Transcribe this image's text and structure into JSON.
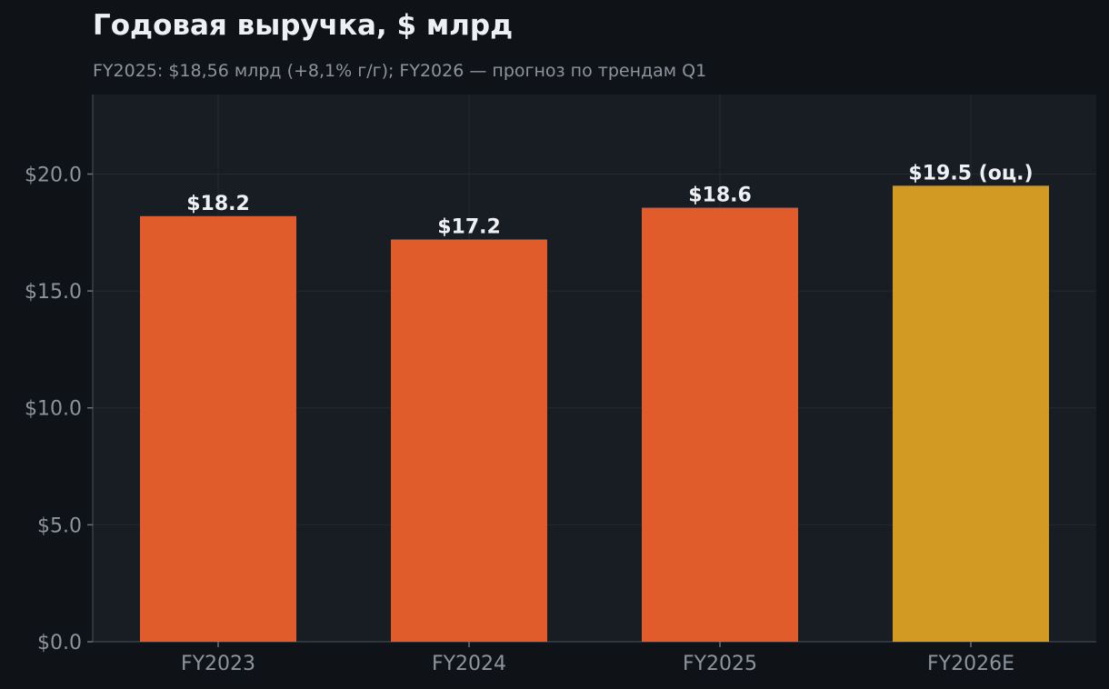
{
  "chart_data": {
    "type": "bar",
    "title": "Годовая выручка, $ млрд",
    "subtitle": "FY2025: $18,56 млрд (+8,1% г/г); FY2026 — прогноз по трендам Q1",
    "categories": [
      "FY2023",
      "FY2024",
      "FY2025",
      "FY2026E"
    ],
    "values": [
      18.2,
      17.2,
      18.56,
      19.5
    ],
    "data_labels": [
      "$18.2",
      "$17.2",
      "$18.6",
      "$19.5 (оц.)"
    ],
    "bar_colors": [
      "#e05c2b",
      "#e05c2b",
      "#e05c2b",
      "#d29a22"
    ],
    "estimate_flags": [
      false,
      false,
      false,
      true
    ],
    "xlabel": "",
    "ylabel": "",
    "ylim": [
      0,
      23.4
    ],
    "yticks": [
      0,
      5,
      10,
      15,
      20
    ],
    "ytick_labels": [
      "$0.0",
      "$5.0",
      "$10.0",
      "$15.0",
      "$20.0"
    ],
    "grid": true,
    "legend": "none"
  },
  "colors": {
    "background": "#0f1318",
    "plot_background": "#181c23",
    "grid": "#252a32",
    "text": "#eef0f3",
    "muted_text": "#8d949c",
    "actual": "#e05c2b",
    "estimate": "#d29a22"
  }
}
